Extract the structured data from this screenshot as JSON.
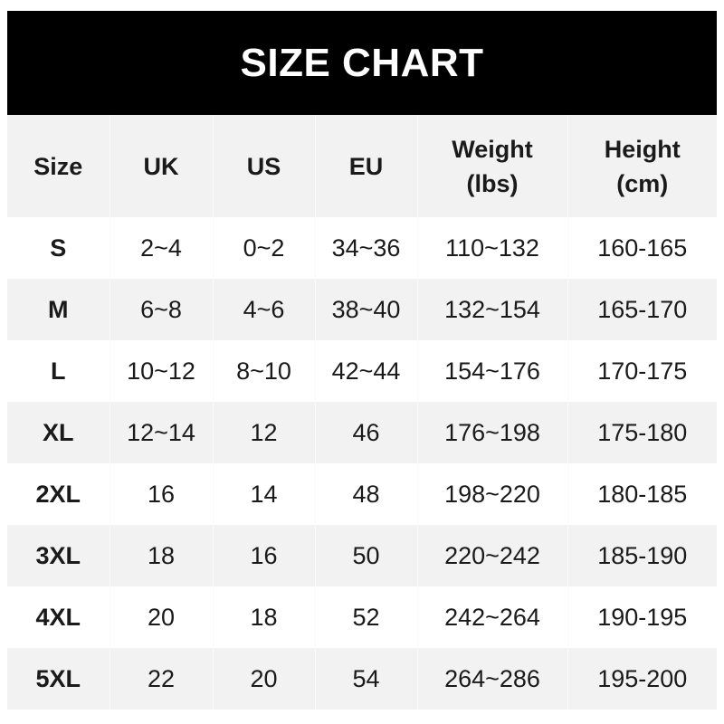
{
  "title": "SIZE CHART",
  "headers": [
    [
      "Size"
    ],
    [
      "UK"
    ],
    [
      "US"
    ],
    [
      "EU"
    ],
    [
      "Weight",
      "(lbs)"
    ],
    [
      "Height",
      "(cm)"
    ]
  ],
  "rows": [
    [
      "S",
      "2~4",
      "0~2",
      "34~36",
      "110~132",
      "160-165"
    ],
    [
      "M",
      "6~8",
      "4~6",
      "38~40",
      "132~154",
      "165-170"
    ],
    [
      "L",
      "10~12",
      "8~10",
      "42~44",
      "154~176",
      "170-175"
    ],
    [
      "XL",
      "12~14",
      "12",
      "46",
      "176~198",
      "175-180"
    ],
    [
      "2XL",
      "16",
      "14",
      "48",
      "198~220",
      "180-185"
    ],
    [
      "3XL",
      "18",
      "16",
      "50",
      "220~242",
      "185-190"
    ],
    [
      "4XL",
      "20",
      "18",
      "52",
      "242~264",
      "190-195"
    ],
    [
      "5XL",
      "22",
      "20",
      "54",
      "264~286",
      "195-200"
    ]
  ]
}
